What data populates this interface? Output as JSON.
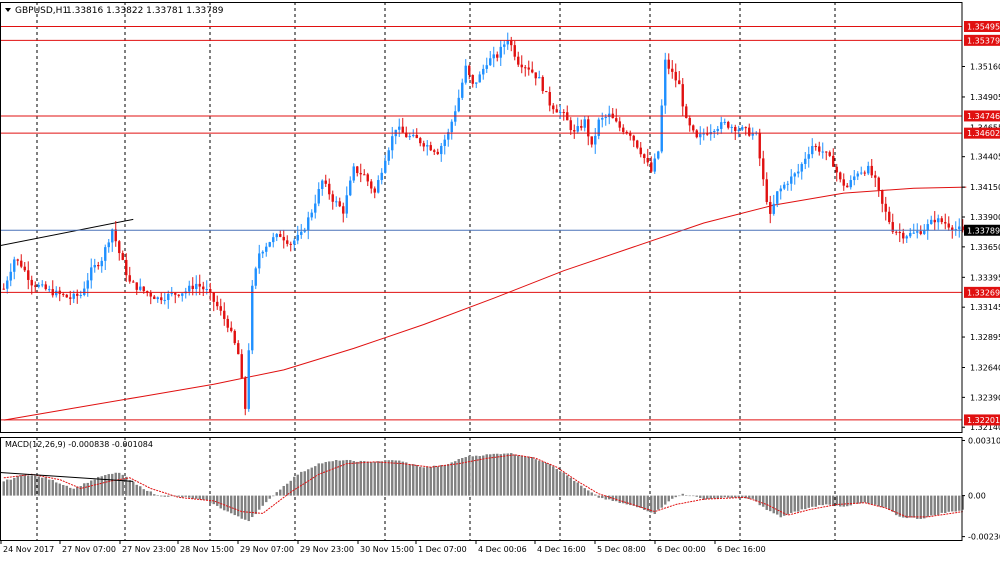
{
  "header": {
    "symbol": "GBPUSD,H1",
    "ohlc": "1.33816 1.33822 1.33781 1.33789"
  },
  "colors": {
    "bull": "#1E90FF",
    "bear": "#E01010",
    "level_line": "#E01010",
    "ma_line": "#E01010",
    "price_line": "#4A72B8",
    "histogram": "#808080",
    "grid": "#000000",
    "trendline": "#000000"
  },
  "chart_data": [
    {
      "type": "candlestick",
      "title": "GBPUSD,H1",
      "ylim": [
        1.321,
        1.357
      ],
      "y_ticks": [
        "1.35160",
        "1.34905",
        "1.34405",
        "1.34150",
        "1.33900",
        "1.33650",
        "1.33395",
        "1.33145",
        "1.32895",
        "1.32640",
        "1.32390",
        "1.32140"
      ],
      "y_tick_values": [
        1.3516,
        1.34905,
        1.34405,
        1.3415,
        1.339,
        1.3365,
        1.33395,
        1.33145,
        1.32895,
        1.3264,
        1.3239,
        1.3214
      ],
      "x_ticks": [
        "24 Nov 2017",
        "27 Nov 07:00",
        "27 Nov 23:00",
        "28 Nov 15:00",
        "29 Nov 07:00",
        "29 Nov 23:00",
        "30 Nov 15:00",
        "1 Dec 07:00",
        "4 Dec 00:06",
        "4 Dec 16:00",
        "5 Dec 08:00",
        "6 Dec 00:00",
        "6 Dec 16:00"
      ],
      "horizontal_levels": [
        {
          "label": "1.35495",
          "value": 1.35495
        },
        {
          "label": "1.35379",
          "value": 1.35379
        },
        {
          "label": "1.34746",
          "value": 1.34746
        },
        {
          "label": "1.34602",
          "value": 1.34602
        },
        {
          "label": "1.33269",
          "value": 1.33269
        },
        {
          "label": "1.32201",
          "value": 1.32201
        }
      ],
      "partial_labels": [
        {
          "label": "1.34655",
          "value": 1.3465
        }
      ],
      "current_price": {
        "label": "1.33789",
        "value": 1.33789
      },
      "moving_average": {
        "points": [
          [
            0,
            1.322
          ],
          [
            20,
            1.323
          ],
          [
            40,
            1.324
          ],
          [
            60,
            1.325
          ],
          [
            80,
            1.3262
          ],
          [
            100,
            1.328
          ],
          [
            120,
            1.33
          ],
          [
            140,
            1.3322
          ],
          [
            160,
            1.3345
          ],
          [
            180,
            1.3365
          ],
          [
            200,
            1.3385
          ],
          [
            220,
            1.34
          ],
          [
            240,
            1.341
          ],
          [
            260,
            1.3414
          ],
          [
            275,
            1.3415
          ]
        ]
      },
      "trendline": {
        "points": [
          [
            0,
            1.3366
          ],
          [
            37,
            1.3388
          ]
        ]
      },
      "anchors": [
        [
          0,
          1.333
        ],
        [
          3,
          1.3355
        ],
        [
          5,
          1.335
        ],
        [
          8,
          1.3335
        ],
        [
          10,
          1.3332
        ],
        [
          13,
          1.3328
        ],
        [
          16,
          1.3325
        ],
        [
          19,
          1.3322
        ],
        [
          22,
          1.3325
        ],
        [
          25,
          1.3345
        ],
        [
          28,
          1.3355
        ],
        [
          31,
          1.338
        ],
        [
          33,
          1.336
        ],
        [
          36,
          1.3335
        ],
        [
          40,
          1.3328
        ],
        [
          44,
          1.3322
        ],
        [
          48,
          1.3325
        ],
        [
          52,
          1.3328
        ],
        [
          55,
          1.3334
        ],
        [
          58,
          1.3328
        ],
        [
          61,
          1.3315
        ],
        [
          64,
          1.33
        ],
        [
          67,
          1.3275
        ],
        [
          69,
          1.323
        ],
        [
          71,
          1.333
        ],
        [
          73,
          1.336
        ],
        [
          76,
          1.337
        ],
        [
          79,
          1.3375
        ],
        [
          82,
          1.3368
        ],
        [
          85,
          1.3375
        ],
        [
          88,
          1.3395
        ],
        [
          91,
          1.342
        ],
        [
          94,
          1.3405
        ],
        [
          97,
          1.3395
        ],
        [
          100,
          1.343
        ],
        [
          103,
          1.3425
        ],
        [
          106,
          1.341
        ],
        [
          109,
          1.344
        ],
        [
          112,
          1.3465
        ],
        [
          115,
          1.3458
        ],
        [
          118,
          1.3455
        ],
        [
          121,
          1.345
        ],
        [
          124,
          1.3445
        ],
        [
          127,
          1.346
        ],
        [
          130,
          1.349
        ],
        [
          132,
          1.3515
        ],
        [
          134,
          1.35
        ],
        [
          136,
          1.3508
        ],
        [
          138,
          1.352
        ],
        [
          141,
          1.3525
        ],
        [
          144,
          1.354
        ],
        [
          147,
          1.352
        ],
        [
          150,
          1.3515
        ],
        [
          153,
          1.3505
        ],
        [
          156,
          1.3485
        ],
        [
          158,
          1.348
        ],
        [
          160,
          1.3475
        ],
        [
          163,
          1.346
        ],
        [
          166,
          1.347
        ],
        [
          168,
          1.3448
        ],
        [
          170,
          1.347
        ],
        [
          173,
          1.3475
        ],
        [
          176,
          1.3465
        ],
        [
          179,
          1.346
        ],
        [
          182,
          1.3445
        ],
        [
          185,
          1.3428
        ],
        [
          187,
          1.3445
        ],
        [
          189,
          1.352
        ],
        [
          191,
          1.351
        ],
        [
          193,
          1.35
        ],
        [
          195,
          1.347
        ],
        [
          198,
          1.3455
        ],
        [
          200,
          1.346
        ],
        [
          203,
          1.3465
        ],
        [
          206,
          1.3468
        ],
        [
          209,
          1.3465
        ],
        [
          212,
          1.3462
        ],
        [
          215,
          1.3458
        ],
        [
          217,
          1.342
        ],
        [
          219,
          1.339
        ],
        [
          221,
          1.341
        ],
        [
          224,
          1.342
        ],
        [
          227,
          1.3428
        ],
        [
          229,
          1.344
        ],
        [
          231,
          1.345
        ],
        [
          234,
          1.3445
        ],
        [
          237,
          1.3435
        ],
        [
          239,
          1.342
        ],
        [
          241,
          1.3415
        ],
        [
          244,
          1.3428
        ],
        [
          247,
          1.343
        ],
        [
          249,
          1.342
        ],
        [
          251,
          1.34
        ],
        [
          254,
          1.338
        ],
        [
          257,
          1.3375
        ],
        [
          260,
          1.3376
        ],
        [
          263,
          1.338
        ],
        [
          266,
          1.3388
        ],
        [
          269,
          1.3385
        ],
        [
          272,
          1.338
        ],
        [
          274,
          1.33789
        ]
      ]
    },
    {
      "type": "macd",
      "title": "MACD(12,26,9) -0.000838 -0.001084",
      "y_ticks": [
        "0.003104",
        "0.00",
        "-0.002309"
      ],
      "y_tick_values": [
        0.003104,
        0,
        -0.002309
      ],
      "ylim": [
        -0.0025,
        0.0033
      ],
      "trendline": {
        "points": [
          [
            0,
            0.0013
          ],
          [
            37,
            0.0008
          ]
        ]
      },
      "histogram_anchors": [
        [
          0,
          0.0008
        ],
        [
          6,
          0.0012
        ],
        [
          12,
          0.001
        ],
        [
          20,
          0.0004
        ],
        [
          28,
          0.0011
        ],
        [
          33,
          0.0013
        ],
        [
          38,
          0.0006
        ],
        [
          44,
          0.0
        ],
        [
          52,
          -0.0001
        ],
        [
          58,
          -0.0003
        ],
        [
          64,
          -0.0009
        ],
        [
          68,
          -0.0013
        ],
        [
          70,
          -0.0014
        ],
        [
          73,
          -0.0008
        ],
        [
          78,
          0.0002
        ],
        [
          84,
          0.0012
        ],
        [
          90,
          0.0018
        ],
        [
          96,
          0.002
        ],
        [
          104,
          0.0019
        ],
        [
          112,
          0.002
        ],
        [
          120,
          0.0016
        ],
        [
          126,
          0.0017
        ],
        [
          132,
          0.0022
        ],
        [
          138,
          0.0023
        ],
        [
          144,
          0.0024
        ],
        [
          150,
          0.0022
        ],
        [
          156,
          0.0018
        ],
        [
          162,
          0.001
        ],
        [
          166,
          0.0004
        ],
        [
          170,
          -0.0001
        ],
        [
          176,
          -0.0004
        ],
        [
          182,
          -0.0007
        ],
        [
          186,
          -0.001
        ],
        [
          190,
          -0.0003
        ],
        [
          194,
          0.0001
        ],
        [
          200,
          -0.0002
        ],
        [
          208,
          -0.0001
        ],
        [
          214,
          -0.0002
        ],
        [
          218,
          -0.0008
        ],
        [
          222,
          -0.0012
        ],
        [
          228,
          -0.0008
        ],
        [
          234,
          -0.0005
        ],
        [
          240,
          -0.0006
        ],
        [
          246,
          -0.0004
        ],
        [
          252,
          -0.0007
        ],
        [
          256,
          -0.0012
        ],
        [
          262,
          -0.0013
        ],
        [
          268,
          -0.001
        ],
        [
          274,
          -0.0008
        ]
      ],
      "signal_anchors": [
        [
          0,
          0.001
        ],
        [
          8,
          0.0012
        ],
        [
          16,
          0.0009
        ],
        [
          22,
          0.0004
        ],
        [
          30,
          0.0008
        ],
        [
          36,
          0.001
        ],
        [
          42,
          0.0004
        ],
        [
          50,
          -0.0001
        ],
        [
          60,
          -0.0003
        ],
        [
          68,
          -0.0009
        ],
        [
          74,
          -0.001
        ],
        [
          82,
          0.0002
        ],
        [
          90,
          0.0012
        ],
        [
          98,
          0.0018
        ],
        [
          106,
          0.0019
        ],
        [
          114,
          0.0018
        ],
        [
          122,
          0.0016
        ],
        [
          130,
          0.0018
        ],
        [
          138,
          0.0021
        ],
        [
          146,
          0.0023
        ],
        [
          152,
          0.0021
        ],
        [
          158,
          0.0016
        ],
        [
          164,
          0.0008
        ],
        [
          170,
          0.0001
        ],
        [
          178,
          -0.0004
        ],
        [
          186,
          -0.0009
        ],
        [
          192,
          -0.0005
        ],
        [
          200,
          -0.0002
        ],
        [
          212,
          -0.0001
        ],
        [
          218,
          -0.0005
        ],
        [
          224,
          -0.0011
        ],
        [
          230,
          -0.0008
        ],
        [
          238,
          -0.0005
        ],
        [
          246,
          -0.0004
        ],
        [
          252,
          -0.0007
        ],
        [
          258,
          -0.0012
        ],
        [
          264,
          -0.0012
        ],
        [
          274,
          -0.0009
        ]
      ]
    }
  ]
}
